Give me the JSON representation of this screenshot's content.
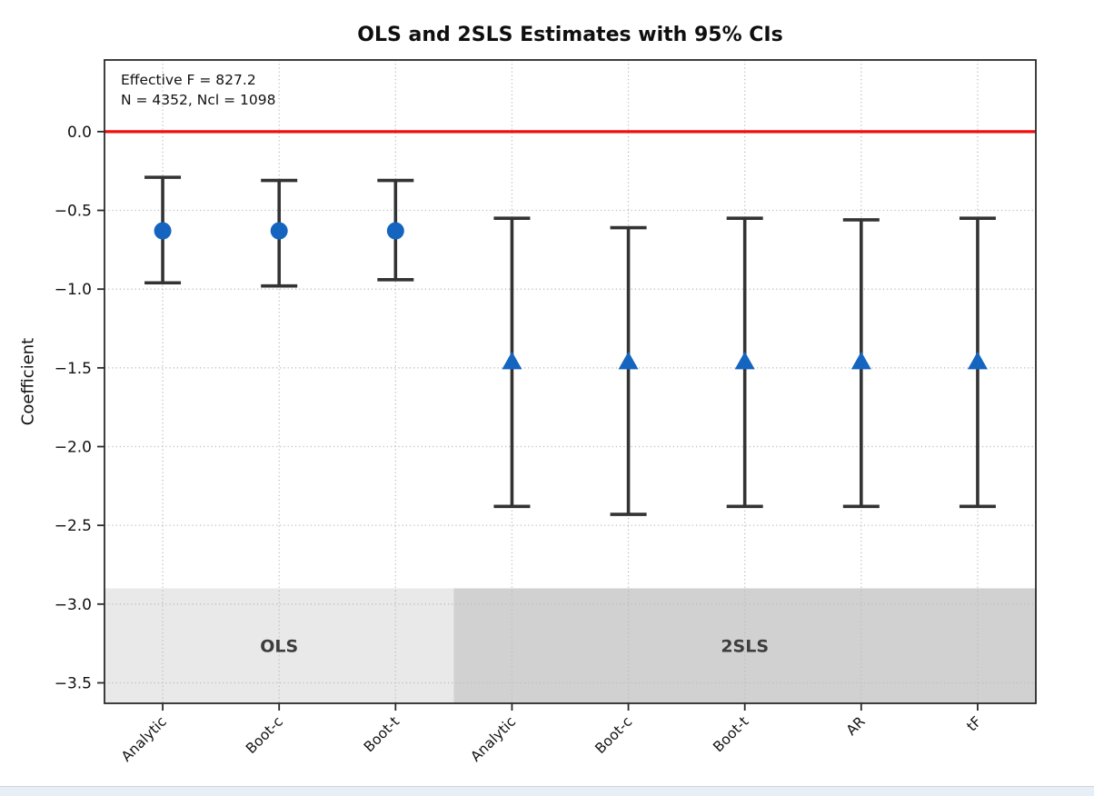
{
  "chart_data": {
    "type": "errorbar",
    "title": "OLS and 2SLS Estimates with 95% CIs",
    "ylabel": "Coefficient",
    "xlabel": "",
    "annotations": [
      "Effective F = 827.2",
      "N = 4352, Ncl = 1098"
    ],
    "categories": [
      "Analytic",
      "Boot-c",
      "Boot-t",
      "Analytic",
      "Boot-c",
      "Boot-t",
      "AR",
      "tF"
    ],
    "points": [
      {
        "label": "Analytic",
        "group": "OLS",
        "estimate": -0.63,
        "ci_low": -0.96,
        "ci_high": -0.29,
        "marker": "circle"
      },
      {
        "label": "Boot-c",
        "group": "OLS",
        "estimate": -0.63,
        "ci_low": -0.98,
        "ci_high": -0.31,
        "marker": "circle"
      },
      {
        "label": "Boot-t",
        "group": "OLS",
        "estimate": -0.63,
        "ci_low": -0.94,
        "ci_high": -0.31,
        "marker": "circle"
      },
      {
        "label": "Analytic",
        "group": "2SLS",
        "estimate": -1.46,
        "ci_low": -2.38,
        "ci_high": -0.55,
        "marker": "triangle"
      },
      {
        "label": "Boot-c",
        "group": "2SLS",
        "estimate": -1.46,
        "ci_low": -2.43,
        "ci_high": -0.61,
        "marker": "triangle"
      },
      {
        "label": "Boot-t",
        "group": "2SLS",
        "estimate": -1.46,
        "ci_low": -2.38,
        "ci_high": -0.55,
        "marker": "triangle"
      },
      {
        "label": "AR",
        "group": "2SLS",
        "estimate": -1.46,
        "ci_low": -2.38,
        "ci_high": -0.56,
        "marker": "triangle"
      },
      {
        "label": "tF",
        "group": "2SLS",
        "estimate": -1.46,
        "ci_low": -2.38,
        "ci_high": -0.55,
        "marker": "triangle"
      }
    ],
    "zero_line": {
      "y": 0.0,
      "color": "#f20d0d"
    },
    "bands": [
      {
        "label": "OLS",
        "x_start": 0,
        "x_end": 3,
        "color": "#e9e9e9",
        "y_top": -2.9
      },
      {
        "label": "2SLS",
        "x_start": 3,
        "x_end": 8,
        "color": "#d1d1d1",
        "y_top": -2.9
      }
    ],
    "yticks": [
      0.0,
      -0.5,
      -1.0,
      -1.5,
      -2.0,
      -2.5,
      -3.0,
      -3.5
    ],
    "ytick_labels": [
      "0.0",
      "−0.5",
      "−1.0",
      "−1.5",
      "−2.0",
      "−2.5",
      "−3.0",
      "−3.5"
    ],
    "ylim": [
      -3.63,
      0.455
    ],
    "grid": true,
    "legend": "none",
    "colors": {
      "marker": "#1565c0",
      "errorbar": "#333333",
      "grid": "#bdbdbd",
      "band_label": "#3d3d3d",
      "spine": "#2a2a2a",
      "tick_text": "#111111"
    }
  }
}
